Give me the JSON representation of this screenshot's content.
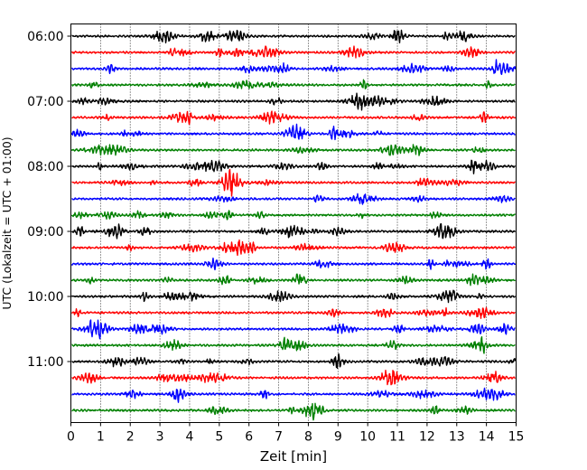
{
  "chart_data": {
    "type": "line",
    "title": "",
    "xlabel": "Zeit  [min]",
    "ylabel": "UTC (Lokalzeit = UTC + 01:00)",
    "xlim": [
      0,
      15
    ],
    "x_ticks": [
      "0",
      "1",
      "2",
      "3",
      "4",
      "5",
      "6",
      "7",
      "8",
      "9",
      "10",
      "11",
      "12",
      "13",
      "14",
      "15"
    ],
    "y_ticks": [
      "06:00",
      "07:00",
      "08:00",
      "09:00",
      "10:00",
      "11:00"
    ],
    "grid": "vertical dotted lines at each minute",
    "trace_color_cycle": [
      "#000000",
      "#ff0000",
      "#0000ff",
      "#008000"
    ],
    "row_interval_min": 15,
    "rows": [
      {
        "start": "06:00",
        "color": "#000000"
      },
      {
        "start": "06:15",
        "color": "#ff0000"
      },
      {
        "start": "06:30",
        "color": "#0000ff"
      },
      {
        "start": "06:45",
        "color": "#008000"
      },
      {
        "start": "07:00",
        "color": "#000000"
      },
      {
        "start": "07:15",
        "color": "#ff0000"
      },
      {
        "start": "07:30",
        "color": "#0000ff"
      },
      {
        "start": "07:45",
        "color": "#008000"
      },
      {
        "start": "08:00",
        "color": "#000000"
      },
      {
        "start": "08:15",
        "color": "#ff0000"
      },
      {
        "start": "08:30",
        "color": "#0000ff"
      },
      {
        "start": "08:45",
        "color": "#008000"
      },
      {
        "start": "09:00",
        "color": "#000000"
      },
      {
        "start": "09:15",
        "color": "#ff0000"
      },
      {
        "start": "09:30",
        "color": "#0000ff"
      },
      {
        "start": "09:45",
        "color": "#008000"
      },
      {
        "start": "10:00",
        "color": "#000000"
      },
      {
        "start": "10:15",
        "color": "#ff0000"
      },
      {
        "start": "10:30",
        "color": "#0000ff"
      },
      {
        "start": "10:45",
        "color": "#008000"
      },
      {
        "start": "11:00",
        "color": "#000000"
      },
      {
        "start": "11:15",
        "color": "#ff0000"
      },
      {
        "start": "11:30",
        "color": "#0000ff"
      },
      {
        "start": "11:45",
        "color": "#008000"
      }
    ]
  }
}
